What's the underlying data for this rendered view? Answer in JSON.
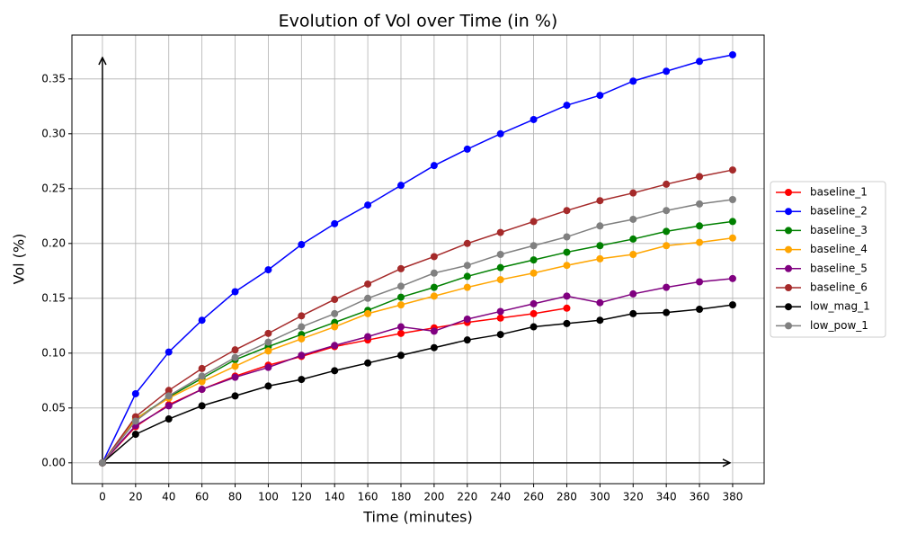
{
  "chart_data": {
    "type": "line",
    "title": "Evolution of Vol over Time (in %)",
    "xlabel": "Time (minutes)",
    "ylabel": "Vol (%)",
    "x": [
      0,
      20,
      40,
      60,
      80,
      100,
      120,
      140,
      160,
      180,
      200,
      220,
      240,
      260,
      280,
      300,
      320,
      340,
      360,
      380
    ],
    "series": [
      {
        "name": "baseline_1",
        "color": "#ff0000",
        "values": [
          0,
          0.033,
          0.053,
          0.067,
          0.079,
          0.089,
          0.097,
          0.106,
          0.112,
          0.118,
          0.123,
          0.128,
          0.132,
          0.136,
          0.141,
          null,
          null,
          null,
          null,
          null
        ]
      },
      {
        "name": "baseline_2",
        "color": "#0000ff",
        "values": [
          0,
          0.063,
          0.101,
          0.13,
          0.156,
          0.176,
          0.199,
          0.218,
          0.235,
          0.253,
          0.271,
          0.286,
          0.3,
          0.313,
          0.326,
          0.335,
          0.348,
          0.357,
          0.366,
          0.372
        ]
      },
      {
        "name": "baseline_3",
        "color": "#008000",
        "values": [
          0,
          0.04,
          0.06,
          0.077,
          0.094,
          0.106,
          0.117,
          0.128,
          0.139,
          0.151,
          0.16,
          0.17,
          0.178,
          0.185,
          0.192,
          0.198,
          0.204,
          0.211,
          0.216,
          0.22
        ]
      },
      {
        "name": "baseline_4",
        "color": "#ffa500",
        "values": [
          0,
          0.04,
          0.059,
          0.074,
          0.088,
          0.102,
          0.113,
          0.124,
          0.136,
          0.144,
          0.152,
          0.16,
          0.167,
          0.173,
          0.18,
          0.186,
          0.19,
          0.198,
          0.201,
          0.205
        ]
      },
      {
        "name": "baseline_5",
        "color": "#800080",
        "values": [
          0,
          0.034,
          0.052,
          0.067,
          0.078,
          0.087,
          0.098,
          0.107,
          0.115,
          0.124,
          0.12,
          0.131,
          0.138,
          0.145,
          0.152,
          0.146,
          0.154,
          0.16,
          0.165,
          0.168
        ]
      },
      {
        "name": "baseline_6",
        "color": "#a52a2a",
        "values": [
          0,
          0.042,
          0.066,
          0.086,
          0.103,
          0.118,
          0.134,
          0.149,
          0.163,
          0.177,
          0.188,
          0.2,
          0.21,
          0.22,
          0.23,
          0.239,
          0.246,
          0.254,
          0.261,
          0.267
        ]
      },
      {
        "name": "low_mag_1",
        "color": "#000000",
        "values": [
          0,
          0.026,
          0.04,
          0.052,
          0.061,
          0.07,
          0.076,
          0.084,
          0.091,
          0.098,
          0.105,
          0.112,
          0.117,
          0.124,
          0.127,
          0.13,
          0.136,
          0.137,
          0.14,
          0.144
        ]
      },
      {
        "name": "low_pow_1",
        "color": "#808080",
        "values": [
          0,
          0.038,
          0.061,
          0.079,
          0.096,
          0.11,
          0.124,
          0.136,
          0.15,
          0.161,
          0.173,
          0.18,
          0.19,
          0.198,
          0.206,
          0.216,
          0.222,
          0.23,
          0.236,
          0.24
        ]
      }
    ],
    "xlim": [
      -18.4,
      399
    ],
    "ylim": [
      -0.019,
      0.39
    ],
    "xticks": [
      0,
      20,
      40,
      60,
      80,
      100,
      120,
      140,
      160,
      180,
      200,
      220,
      240,
      260,
      280,
      300,
      320,
      340,
      360,
      380
    ],
    "yticks": [
      {
        "value": 0,
        "label": "0.00"
      },
      {
        "value": 0.05,
        "label": "0.05"
      },
      {
        "value": 0.1,
        "label": "0.10"
      },
      {
        "value": 0.15,
        "label": "0.15"
      },
      {
        "value": 0.2,
        "label": "0.20"
      },
      {
        "value": 0.25,
        "label": "0.25"
      },
      {
        "value": 0.3,
        "label": "0.30"
      },
      {
        "value": 0.35,
        "label": "0.35"
      }
    ],
    "grid": true,
    "legend": "outside right"
  }
}
